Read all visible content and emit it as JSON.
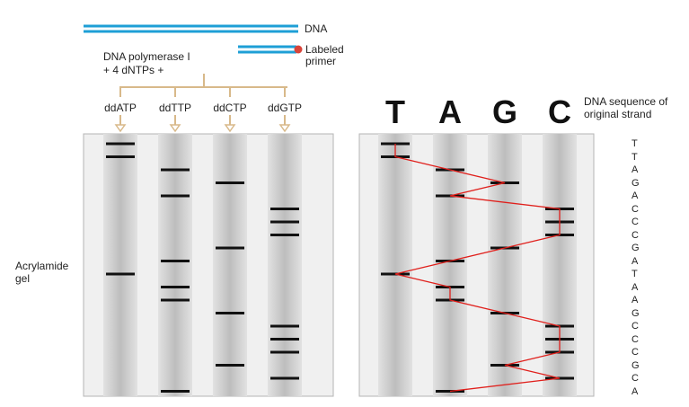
{
  "labels": {
    "dna": "DNA",
    "labeled_primer": "Labeled primer",
    "polymerase_line1": "DNA polymerase I",
    "polymerase_line2": "+ 4 dNTPs +",
    "gel": "Acrylamide gel",
    "sequence_caption": "DNA sequence of original strand"
  },
  "lanes": [
    "ddATP",
    "ddTTP",
    "ddCTP",
    "ddGTP"
  ],
  "lane_letters": [
    "T",
    "A",
    "G",
    "C"
  ],
  "read_sequence": [
    "T",
    "T",
    "A",
    "G",
    "A",
    "C",
    "C",
    "C",
    "G",
    "A",
    "T",
    "A",
    "A",
    "G",
    "C",
    "C",
    "C",
    "G",
    "C",
    "A"
  ],
  "bands": [
    {
      "lane": 0,
      "pos": 0
    },
    {
      "lane": 0,
      "pos": 1
    },
    {
      "lane": 1,
      "pos": 2
    },
    {
      "lane": 2,
      "pos": 3
    },
    {
      "lane": 1,
      "pos": 4
    },
    {
      "lane": 3,
      "pos": 5
    },
    {
      "lane": 3,
      "pos": 6
    },
    {
      "lane": 3,
      "pos": 7
    },
    {
      "lane": 2,
      "pos": 8
    },
    {
      "lane": 1,
      "pos": 9
    },
    {
      "lane": 0,
      "pos": 10
    },
    {
      "lane": 1,
      "pos": 11
    },
    {
      "lane": 1,
      "pos": 12
    },
    {
      "lane": 2,
      "pos": 13
    },
    {
      "lane": 3,
      "pos": 14
    },
    {
      "lane": 3,
      "pos": 15
    },
    {
      "lane": 3,
      "pos": 16
    },
    {
      "lane": 2,
      "pos": 17
    },
    {
      "lane": 3,
      "pos": 18
    },
    {
      "lane": 1,
      "pos": 19
    }
  ],
  "colors": {
    "dna_strand": "#1e9fd6",
    "primer_tag": "#d9443a",
    "bracket": "#d8b98a",
    "gel_bg": "#f0f0f0",
    "band": "#111111",
    "trace": "#e0201c"
  }
}
